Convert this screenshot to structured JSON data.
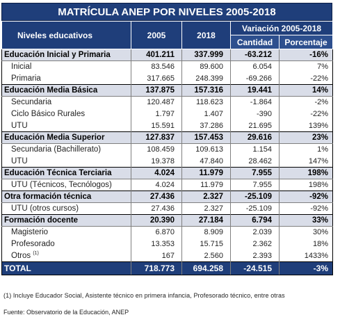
{
  "title": "MATRÍCULA ANEP POR NIVELES 2005-2018",
  "header": {
    "levels": "Niveles educativos",
    "y2005": "2005",
    "y2018": "2018",
    "variation": "Variación 2005-2018",
    "quantity": "Cantidad",
    "percentage": "Porcentaje"
  },
  "rows": [
    {
      "label": "Educación Inicial y Primaria",
      "v2005": "401.211",
      "v2018": "337.999",
      "qty": "-63.212",
      "pct": "-16%",
      "kind": "cat"
    },
    {
      "label": "Inicial",
      "v2005": "83.546",
      "v2018": "89.600",
      "qty": "6.054",
      "pct": "7%",
      "kind": "sub"
    },
    {
      "label": "Primaria",
      "v2005": "317.665",
      "v2018": "248.399",
      "qty": "-69.266",
      "pct": "-22%",
      "kind": "sub"
    },
    {
      "label": "Educación Media Básica",
      "v2005": "137.875",
      "v2018": "157.316",
      "qty": "19.441",
      "pct": "14%",
      "kind": "cat"
    },
    {
      "label": "Secundaria",
      "v2005": "120.487",
      "v2018": "118.623",
      "qty": "-1.864",
      "pct": "-2%",
      "kind": "sub"
    },
    {
      "label": "Ciclo Básico Rurales",
      "v2005": "1.797",
      "v2018": "1.407",
      "qty": "-390",
      "pct": "-22%",
      "kind": "sub"
    },
    {
      "label": "UTU",
      "v2005": "15.591",
      "v2018": "37.286",
      "qty": "21.695",
      "pct": "139%",
      "kind": "sub"
    },
    {
      "label": "Educación Media Superior",
      "v2005": "127.837",
      "v2018": "157.453",
      "qty": "29.616",
      "pct": "23%",
      "kind": "cat"
    },
    {
      "label": "Secundaria (Bachillerato)",
      "v2005": "108.459",
      "v2018": "109.613",
      "qty": "1.154",
      "pct": "1%",
      "kind": "sub"
    },
    {
      "label": "UTU",
      "v2005": "19.378",
      "v2018": "47.840",
      "qty": "28.462",
      "pct": "147%",
      "kind": "sub"
    },
    {
      "label": "Educación Técnica Terciaria",
      "v2005": "4.024",
      "v2018": "11.979",
      "qty": "7.955",
      "pct": "198%",
      "kind": "cat"
    },
    {
      "label": "UTU (Técnicos, Tecnólogos)",
      "v2005": "4.024",
      "v2018": "11.979",
      "qty": "7.955",
      "pct": "198%",
      "kind": "sub"
    },
    {
      "label": "Otra formación técnica",
      "v2005": "27.436",
      "v2018": "2.327",
      "qty": "-25.109",
      "pct": "-92%",
      "kind": "cat"
    },
    {
      "label": "UTU (otros cursos)",
      "v2005": "27.436",
      "v2018": "2.327",
      "qty": "-25.109",
      "pct": "-92%",
      "kind": "sub"
    },
    {
      "label": "Formación docente",
      "v2005": "20.390",
      "v2018": "27.184",
      "qty": "6.794",
      "pct": "33%",
      "kind": "cat"
    },
    {
      "label": "Magisterio",
      "v2005": "6.870",
      "v2018": "8.909",
      "qty": "2.039",
      "pct": "30%",
      "kind": "sub"
    },
    {
      "label": "Profesorado",
      "v2005": "13.353",
      "v2018": "15.715",
      "qty": "2.362",
      "pct": "18%",
      "kind": "sub"
    },
    {
      "label": "Otros",
      "sup": "(1)",
      "v2005": "167",
      "v2018": "2.560",
      "qty": "2.393",
      "pct": "1433%",
      "kind": "sub"
    }
  ],
  "total": {
    "label": "TOTAL",
    "v2005": "718.773",
    "v2018": "694.258",
    "qty": "-24.515",
    "pct": "-3%"
  },
  "footnote": "(1) Incluye Educador Social, Asistente técnico en primera infancia, Profesorado técnico, entre otras",
  "source": "Fuente: Observatorio de la Educación, ANEP",
  "colors": {
    "header_bg": "#1f3e7a",
    "category_bg": "#d9dde8",
    "text": "#000000"
  }
}
